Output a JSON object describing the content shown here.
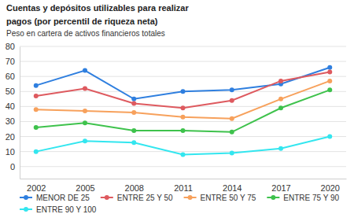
{
  "chart_data": {
    "type": "line",
    "title": "Cuentas y depósitos utilizables para realizar pagos (por percentil de riqueza neta)",
    "subtitle": "Peso en cartera de activos financieros totales",
    "x": [
      2002,
      2005,
      2008,
      2011,
      2014,
      2017,
      2020
    ],
    "xlim": [
      2001,
      2021
    ],
    "xticks": [
      2002,
      2005,
      2008,
      2011,
      2014,
      2017,
      2020
    ],
    "ylim": [
      -8,
      80
    ],
    "yticks": [
      0,
      10,
      20,
      30,
      40,
      50,
      60,
      70,
      80
    ],
    "grid": true,
    "legend": "bottom",
    "marker": "circle",
    "series": [
      {
        "name": "MENOR DE 25",
        "color": "#2f7fdf",
        "values": [
          54,
          64,
          45,
          50,
          51,
          55,
          66
        ]
      },
      {
        "name": "ENTRE 25 Y 50",
        "color": "#de5a5f",
        "values": [
          47,
          52,
          42,
          39,
          44,
          57,
          63
        ]
      },
      {
        "name": "ENTRE 50 Y 75",
        "color": "#f7a15c",
        "values": [
          38,
          37,
          36,
          33,
          32,
          45,
          57
        ]
      },
      {
        "name": "ENTRE 75 Y 90",
        "color": "#3ec24c",
        "values": [
          26,
          29,
          24,
          24,
          23,
          39,
          51
        ]
      },
      {
        "name": "ENTRE 90 Y 100",
        "color": "#33e6ef",
        "values": [
          10,
          17,
          16,
          8,
          9,
          12,
          20
        ]
      }
    ]
  }
}
